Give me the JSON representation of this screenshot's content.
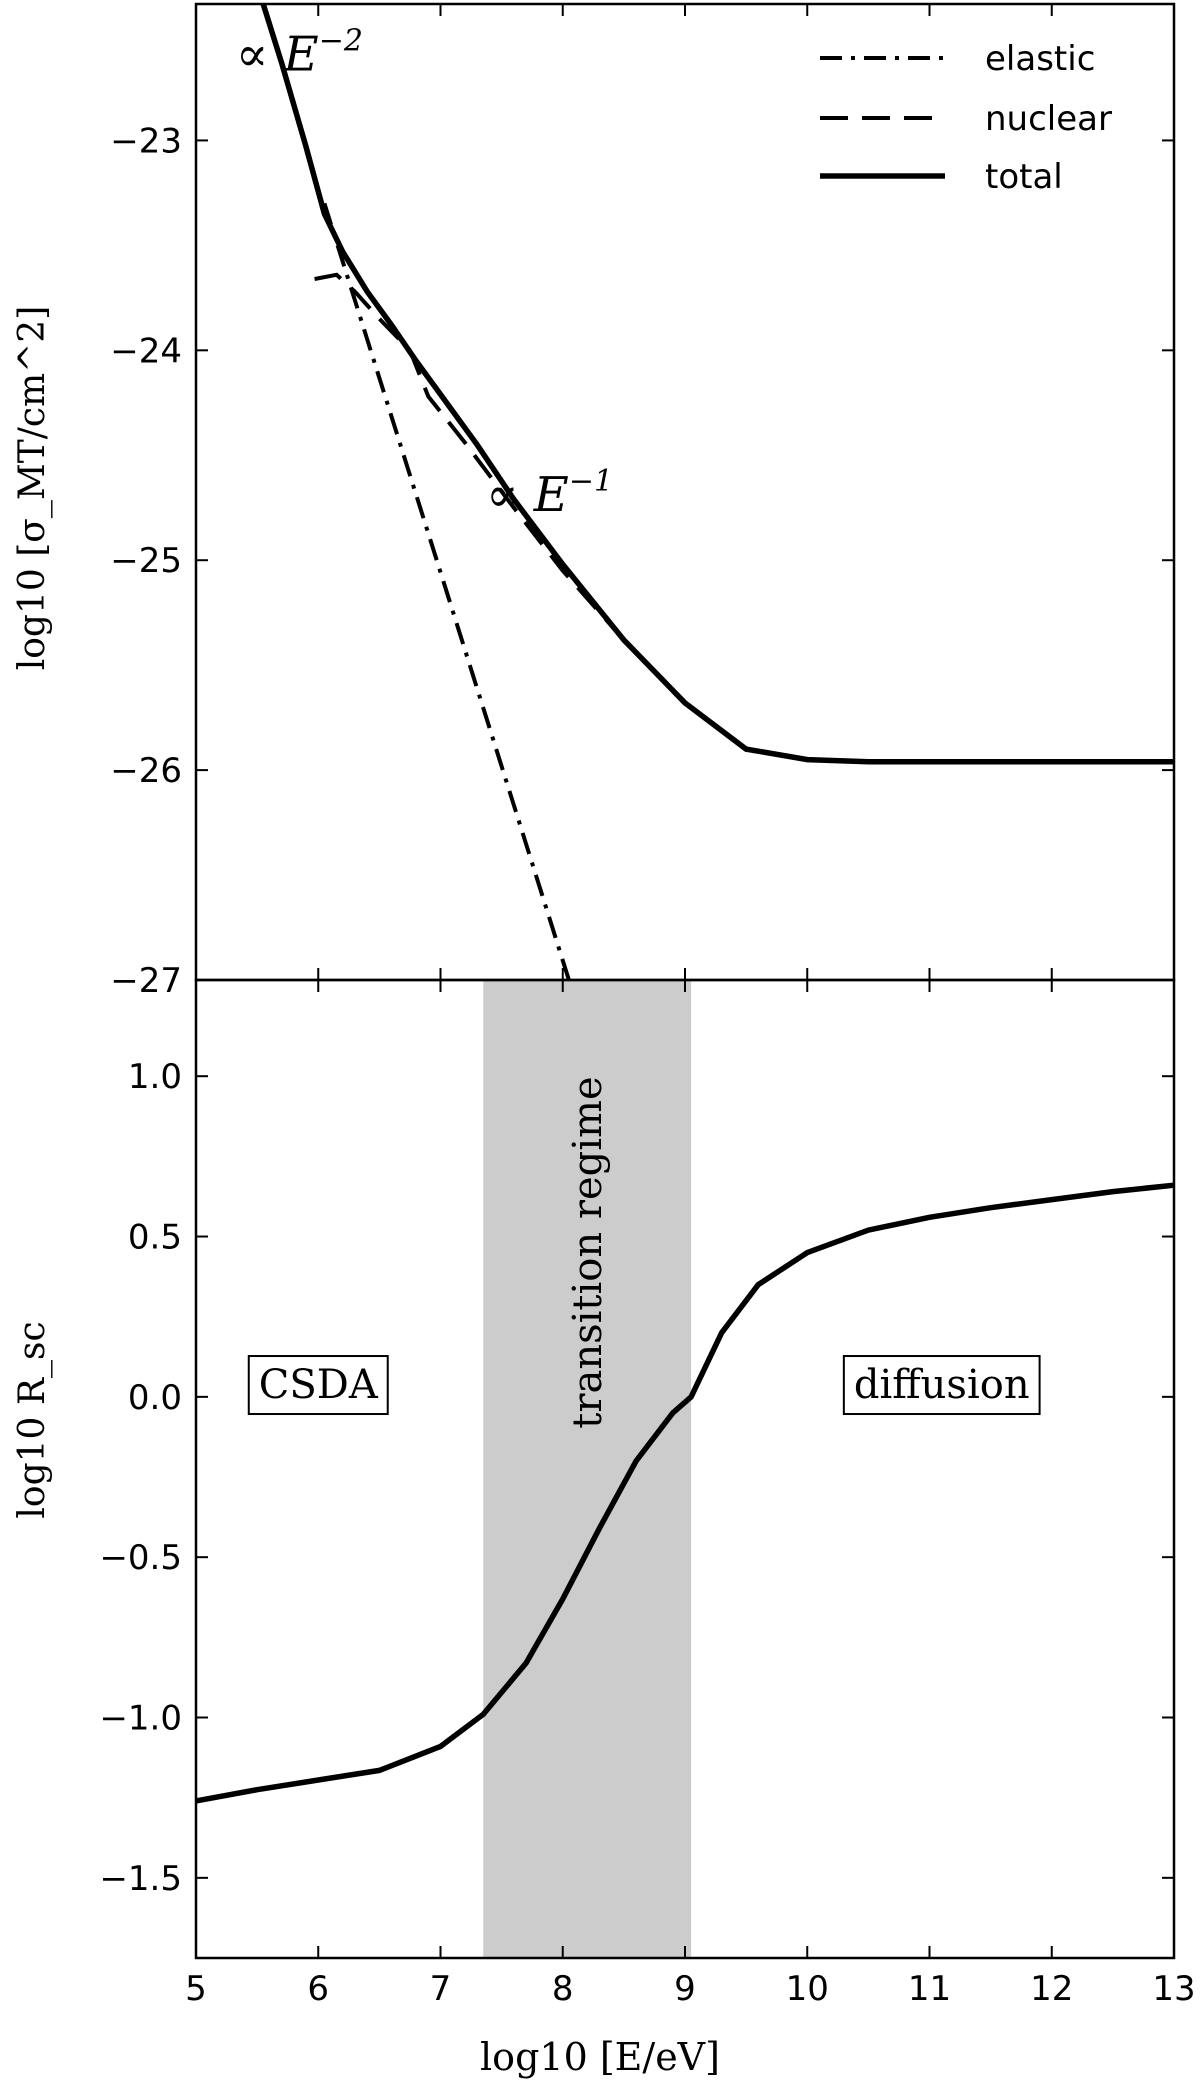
{
  "chart_data": [
    {
      "panel": "top",
      "type": "line",
      "xlabel": "log10 [E/eV]",
      "ylabel": "log10 [σ_MT/cm^2]",
      "xlim": [
        5,
        13
      ],
      "ylim": [
        -27,
        -22.35
      ],
      "yticks": [
        -27,
        -26,
        -25,
        -24,
        -23
      ],
      "ytick_labels": [
        "−27",
        "−26",
        "−25",
        "−24",
        "−23"
      ],
      "legend": {
        "placement": "top-right",
        "entries": [
          "elastic",
          "nuclear",
          "total"
        ]
      },
      "annotations": [
        {
          "text": "∝ E^-2",
          "base": "∝ E",
          "exp": "−2",
          "x": 5.85,
          "y": -22.6
        },
        {
          "text": "∝ E^-1",
          "base": "∝ E",
          "exp": "−1",
          "x": 7.7,
          "y": -24.7
        }
      ],
      "series": [
        {
          "name": "elastic",
          "style": "dashdot",
          "x": [
            6.05,
            8.05
          ],
          "y": [
            -23.3,
            -27.0
          ]
        },
        {
          "name": "nuclear",
          "style": "dashed",
          "x": [
            5.97,
            6.15,
            6.3,
            6.5,
            6.75,
            6.9,
            7.2,
            7.6,
            8.0,
            8.5,
            9.0,
            9.5,
            10.0,
            10.5,
            11.0,
            12.0,
            13.0
          ],
          "y": [
            -23.66,
            -23.64,
            -23.72,
            -23.85,
            -24.0,
            -24.22,
            -24.44,
            -24.75,
            -25.05,
            -25.38,
            -25.68,
            -25.9,
            -25.95,
            -25.96,
            -25.96,
            -25.96,
            -25.96
          ]
        },
        {
          "name": "total",
          "style": "solid",
          "x": [
            5.55,
            5.7,
            5.9,
            6.05,
            6.2,
            6.4,
            6.6,
            6.8,
            7.0,
            7.3,
            7.6,
            8.0,
            8.5,
            9.0,
            9.5,
            10.0,
            10.5,
            11.0,
            12.0,
            13.0
          ],
          "y": [
            -22.35,
            -22.63,
            -23.03,
            -23.35,
            -23.53,
            -23.72,
            -23.88,
            -24.05,
            -24.21,
            -24.45,
            -24.71,
            -25.02,
            -25.38,
            -25.68,
            -25.9,
            -25.95,
            -25.96,
            -25.96,
            -25.96,
            -25.96
          ]
        }
      ]
    },
    {
      "panel": "bottom",
      "type": "line",
      "xlabel": "log10 [E/eV]",
      "ylabel": "log10 R_sc",
      "xlim": [
        5,
        13
      ],
      "ylim": [
        -1.75,
        1.3
      ],
      "xticks": [
        5,
        6,
        7,
        8,
        9,
        10,
        11,
        12,
        13
      ],
      "xtick_labels": [
        "5",
        "6",
        "7",
        "8",
        "9",
        "10",
        "11",
        "12",
        "13"
      ],
      "yticks": [
        -1.5,
        -1.0,
        -0.5,
        0.0,
        0.5,
        1.0
      ],
      "ytick_labels": [
        "−1.5",
        "−1.0",
        "−0.5",
        "0.0",
        "0.5",
        "1.0"
      ],
      "shaded_region": {
        "x_from": 7.35,
        "x_to": 9.05,
        "label": "transition regime",
        "color": "#cccccc"
      },
      "boxed_labels": [
        {
          "text": "CSDA",
          "x": 6.0,
          "y": 0.04
        },
        {
          "text": "diffusion",
          "x": 11.1,
          "y": 0.04
        }
      ],
      "series": [
        {
          "name": "R_sc",
          "style": "solid",
          "x": [
            5.0,
            5.5,
            6.0,
            6.5,
            7.0,
            7.35,
            7.7,
            8.0,
            8.3,
            8.6,
            8.9,
            9.05,
            9.3,
            9.6,
            10.0,
            10.5,
            11.0,
            11.5,
            12.0,
            12.5,
            13.0
          ],
          "y": [
            -1.26,
            -1.225,
            -1.195,
            -1.165,
            -1.09,
            -0.99,
            -0.83,
            -0.63,
            -0.41,
            -0.2,
            -0.05,
            0.0,
            0.2,
            0.35,
            0.45,
            0.52,
            0.56,
            0.59,
            0.615,
            0.64,
            0.66
          ]
        }
      ]
    }
  ],
  "colors": {
    "line": "#000000",
    "shade": "#cccccc",
    "background": "#ffffff"
  }
}
